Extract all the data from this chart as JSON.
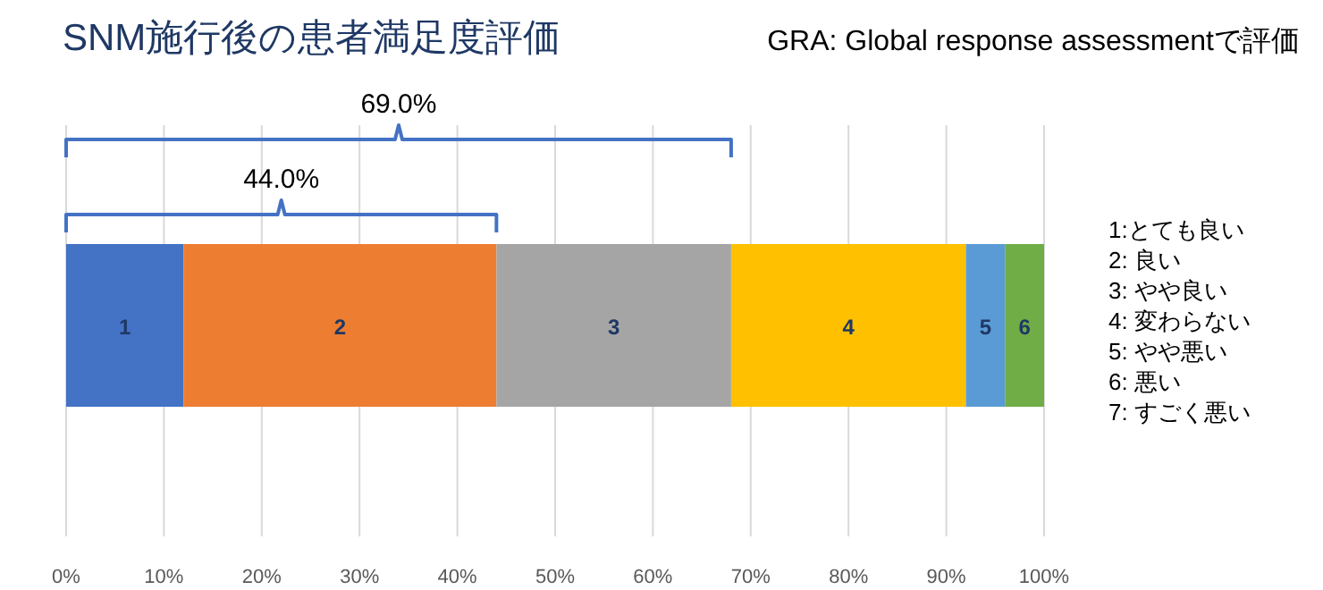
{
  "chart_data": {
    "type": "bar",
    "orientation": "horizontal",
    "stacked": true,
    "title": "SNM施行後の患者満足度評価",
    "subtitle": "GRA: Global response assessmentで評価",
    "categories": [
      null
    ],
    "series": [
      {
        "name": "1",
        "color": "#4472c4",
        "values": [
          12
        ]
      },
      {
        "name": "2",
        "color": "#ed7d31",
        "values": [
          32
        ]
      },
      {
        "name": "3",
        "color": "#a5a5a5",
        "values": [
          24
        ]
      },
      {
        "name": "4",
        "color": "#ffc000",
        "values": [
          24
        ]
      },
      {
        "name": "5",
        "color": "#5b9bd5",
        "values": [
          4
        ]
      },
      {
        "name": "6",
        "color": "#70ad47",
        "values": [
          4
        ]
      }
    ],
    "xlim": [
      0,
      100
    ],
    "xticks": [
      {
        "value": 0,
        "label": "0%"
      },
      {
        "value": 10,
        "label": "10%"
      },
      {
        "value": 20,
        "label": "20%"
      },
      {
        "value": 30,
        "label": "30%"
      },
      {
        "value": 40,
        "label": "40%"
      },
      {
        "value": 50,
        "label": "50%"
      },
      {
        "value": 60,
        "label": "60%"
      },
      {
        "value": 70,
        "label": "70%"
      },
      {
        "value": 80,
        "label": "80%"
      },
      {
        "value": 90,
        "label": "90%"
      },
      {
        "value": 100,
        "label": "100%"
      }
    ],
    "grid": "x",
    "tick_labels": "x",
    "annotations": [
      "69.0%",
      "44.0%",
      "1:とても良い",
      "2: 良い",
      "3: やや良い",
      "4: 変わらない",
      "5: やや悪い",
      "6: 悪い",
      "7: すごく悪い"
    ]
  }
}
